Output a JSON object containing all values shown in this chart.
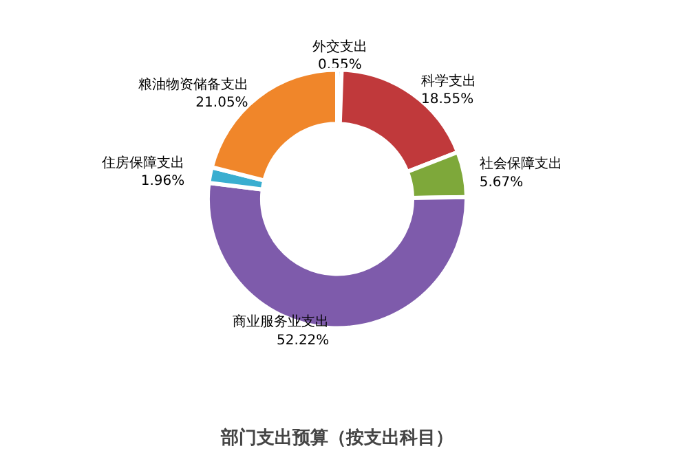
{
  "chart_data": {
    "type": "donut",
    "title": "部门支出预算（按支出科目）",
    "categories": [
      "外交支出",
      "科学支出",
      "社会保障支出",
      "商业服务业支出",
      "住房保障支出",
      "粮油物资储备支出"
    ],
    "values": [
      0.55,
      18.55,
      5.67,
      52.22,
      1.96,
      21.05
    ],
    "value_labels": [
      "0.55%",
      "18.55%",
      "5.67%",
      "52.22%",
      "1.96%",
      "21.05%"
    ],
    "colors": [
      "#2e5fa0",
      "#c0393b",
      "#7ea83a",
      "#7e5bab",
      "#3aaed0",
      "#f0862a"
    ],
    "legend": false
  }
}
